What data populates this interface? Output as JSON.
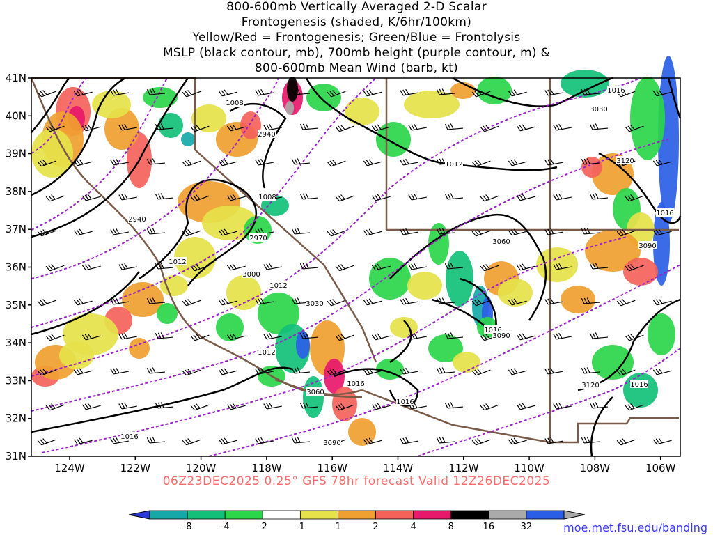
{
  "title_lines": [
    "800-600mb Vertically Averaged 2-D Scalar",
    "Frontogenesis (shaded, K/6hr/100km)",
    "Yellow/Red = Frontogenesis;  Green/Blue = Frontolysis",
    "MSLP (black contour, mb), 700mb height (purple contour, m) &",
    "800-600mb Mean Wind (barb, kt)"
  ],
  "subtitle": "06Z23DEC2025 0.25° GFS 78hr forecast Valid 12Z26DEC2025",
  "credit": "moe.met.fsu.edu/banding",
  "colors": {
    "subtitle": "#ff6b6b",
    "credit": "#3a3aff",
    "mslp": "#000000",
    "height700": "#9a22c8",
    "borders": "#7a5a48",
    "barbs": "#000000"
  },
  "map": {
    "lat_labels": [
      "41N",
      "40N",
      "39N",
      "38N",
      "37N",
      "36N",
      "35N",
      "34N",
      "33N",
      "32N",
      "31N"
    ],
    "lon_labels": [
      "124W",
      "122W",
      "120W",
      "118W",
      "116W",
      "114W",
      "112W",
      "110W",
      "108W",
      "106W"
    ]
  },
  "mslp_labels": [
    "1008",
    "1008",
    "1012",
    "1012",
    "1012",
    "1012",
    "1016",
    "1016",
    "1016",
    "1016",
    "1016",
    "1016",
    "1016"
  ],
  "height_labels": [
    "2940",
    "2940",
    "2970",
    "3000",
    "3030",
    "3030",
    "3060",
    "3060",
    "3090",
    "3090",
    "3090",
    "3120",
    "3120"
  ],
  "colorbar": {
    "labels": [
      "-8",
      "-4",
      "-2",
      "-1",
      "1",
      "2",
      "4",
      "8",
      "16",
      "32"
    ],
    "colors": [
      "#2a3ad8",
      "#16a8a8",
      "#12c07a",
      "#2bd64a",
      "#ffffff",
      "#e6e24a",
      "#f0a030",
      "#f4625a",
      "#e8186a",
      "#000000",
      "#aaaaaa",
      "#2b5ee6"
    ]
  }
}
